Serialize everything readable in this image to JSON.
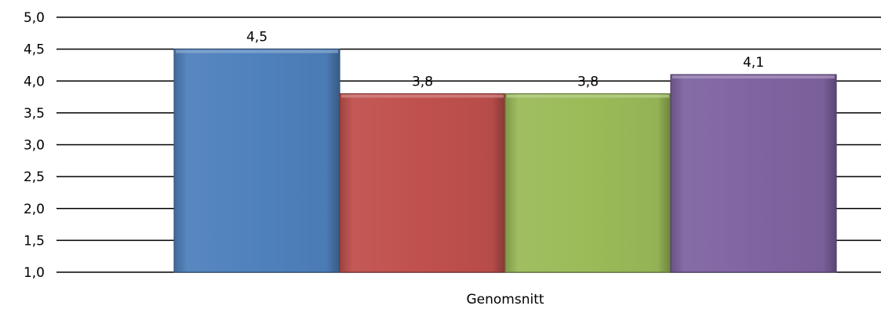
{
  "chart_data": {
    "type": "bar",
    "categories": [
      "Genomsnitt"
    ],
    "series": [
      {
        "values": [
          4.5
        ],
        "color": "#4f81bd",
        "data_label": "4,5"
      },
      {
        "values": [
          3.8
        ],
        "color": "#c0504d",
        "data_label": "3,8"
      },
      {
        "values": [
          3.8
        ],
        "color": "#9bbb59",
        "data_label": "3,8"
      },
      {
        "values": [
          4.1
        ],
        "color": "#8064a2",
        "data_label": "4,1"
      }
    ],
    "ylim": [
      1.0,
      5.0
    ],
    "yticks": [
      1.0,
      1.5,
      2.0,
      2.5,
      3.0,
      3.5,
      4.0,
      4.5,
      5.0
    ],
    "ytick_labels": [
      "1,0",
      "1,5",
      "2,0",
      "2,5",
      "3,0",
      "3,5",
      "4,0",
      "4,5",
      "5,0"
    ],
    "grid": true,
    "legend": "none",
    "xlabel": "",
    "ylabel": "",
    "title": ""
  }
}
